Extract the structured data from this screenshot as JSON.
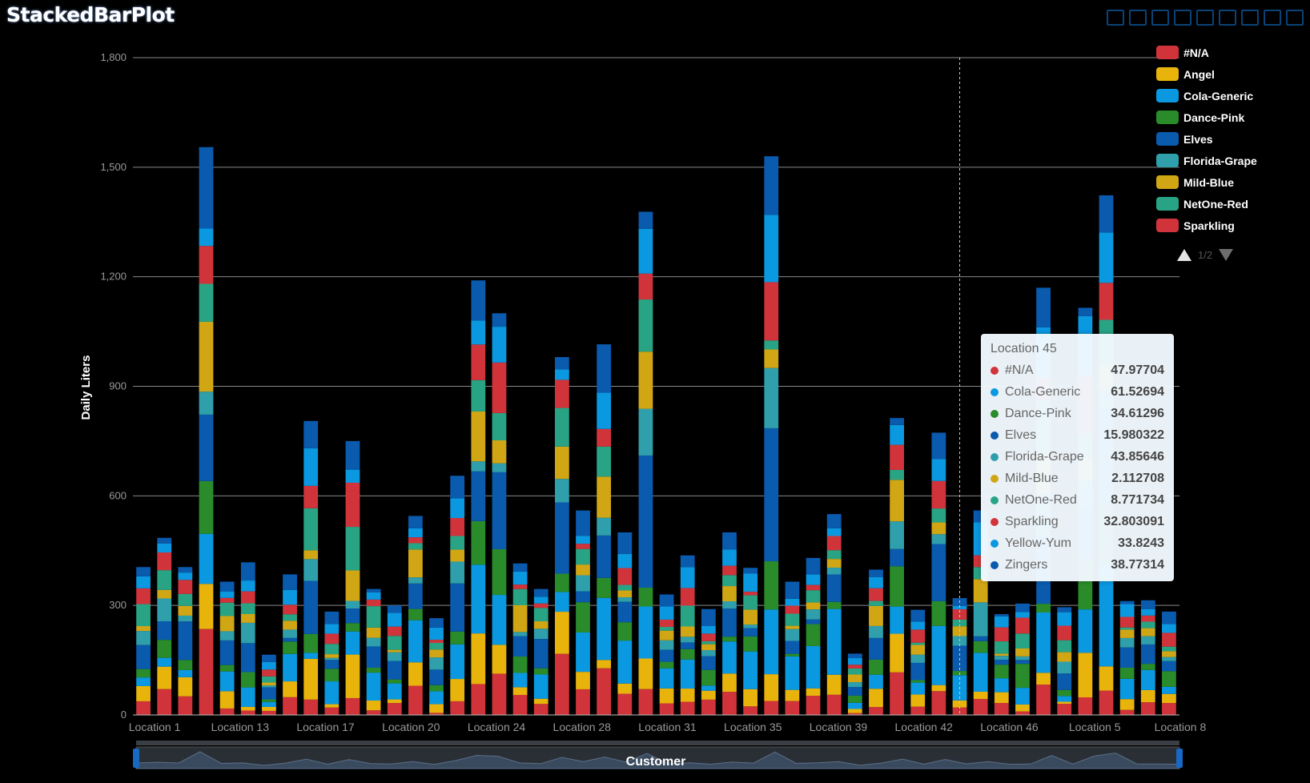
{
  "title": "StackedBarPlot",
  "toolbox": {
    "icons": [
      "zoom-icon",
      "zoom-reset-icon",
      "download-icon",
      "rect-select-icon",
      "lasso-icon",
      "keep-select-icon",
      "clear-select-icon",
      "data-view-icon",
      "restore-icon"
    ]
  },
  "legend": {
    "items": [
      {
        "label": "#N/A",
        "color": "#d0343a"
      },
      {
        "label": "Angel",
        "color": "#e8b40c"
      },
      {
        "label": "Cola-Generic",
        "color": "#0a98e0"
      },
      {
        "label": "Dance-Pink",
        "color": "#2a8b2a"
      },
      {
        "label": "Elves",
        "color": "#0a5aad"
      },
      {
        "label": "Florida-Grape",
        "color": "#2e9fab"
      },
      {
        "label": "Mild-Blue",
        "color": "#d1a615"
      },
      {
        "label": "NetOne-Red",
        "color": "#28a485"
      },
      {
        "label": "Sparkling",
        "color": "#d0343a"
      }
    ],
    "page": "1/2"
  },
  "tooltip": {
    "title": "Location 45",
    "rows": [
      {
        "name": "#N/A",
        "value": "47.97704",
        "color": "#d0343a"
      },
      {
        "name": "Cola-Generic",
        "value": "61.52694",
        "color": "#0a98e0"
      },
      {
        "name": "Dance-Pink",
        "value": "34.61296",
        "color": "#2a8b2a"
      },
      {
        "name": "Elves",
        "value": "15.980322",
        "color": "#0a5aad"
      },
      {
        "name": "Florida-Grape",
        "value": "43.85646",
        "color": "#2e9fab"
      },
      {
        "name": "Mild-Blue",
        "value": "2.112708",
        "color": "#d1a615"
      },
      {
        "name": "NetOne-Red",
        "value": "8.771734",
        "color": "#28a485"
      },
      {
        "name": "Sparkling",
        "value": "32.803091",
        "color": "#d0343a"
      },
      {
        "name": "Yellow-Yum",
        "value": "33.8243",
        "color": "#0a98e0"
      },
      {
        "name": "Zingers",
        "value": "38.77314",
        "color": "#0a5aad"
      }
    ]
  },
  "zoom_slider": {
    "label": "Customer"
  },
  "chart_data": {
    "type": "bar",
    "stacked": true,
    "title": "StackedBarPlot",
    "xlabel": "Customer",
    "ylabel": "Daily Liters",
    "ylim": [
      0,
      1800
    ],
    "yticks": [
      "0",
      "300",
      "600",
      "900",
      "1,200",
      "1,500",
      "1,800"
    ],
    "xtick_labels": [
      "Location 1",
      "Location 13",
      "Location 17",
      "Location 20",
      "Location 24",
      "Location 28",
      "Location 31",
      "Location 35",
      "Location 39",
      "Location 42",
      "Location 46",
      "Location 5",
      "Location 8"
    ],
    "grid": true,
    "legend_position": "top-right",
    "series_names": [
      "#N/A",
      "Angel",
      "Cola-Generic",
      "Dance-Pink",
      "Elves",
      "Florida-Grape",
      "Mild-Blue",
      "NetOne-Red",
      "Sparkling",
      "Yellow-Yum",
      "Zingers"
    ],
    "series_colors": [
      "#d0343a",
      "#e8b40c",
      "#0a98e0",
      "#2a8b2a",
      "#0a5aad",
      "#2e9fab",
      "#d1a615",
      "#28a485",
      "#d0343a",
      "#0a98e0",
      "#0a5aad"
    ],
    "bar_totals": [
      405,
      485,
      405,
      1555,
      365,
      418,
      165,
      385,
      805,
      283,
      750,
      345,
      300,
      545,
      265,
      655,
      1190,
      1100,
      415,
      345,
      980,
      560,
      1015,
      500,
      1378,
      330,
      437,
      290,
      500,
      403,
      1530,
      365,
      430,
      550,
      168,
      398,
      813,
      288,
      773,
      320,
      560,
      276,
      305,
      1170,
      295,
      1115,
      1423,
      312,
      314,
      283
    ],
    "highlighted_category": "Location 45",
    "highlighted_index": 39
  }
}
